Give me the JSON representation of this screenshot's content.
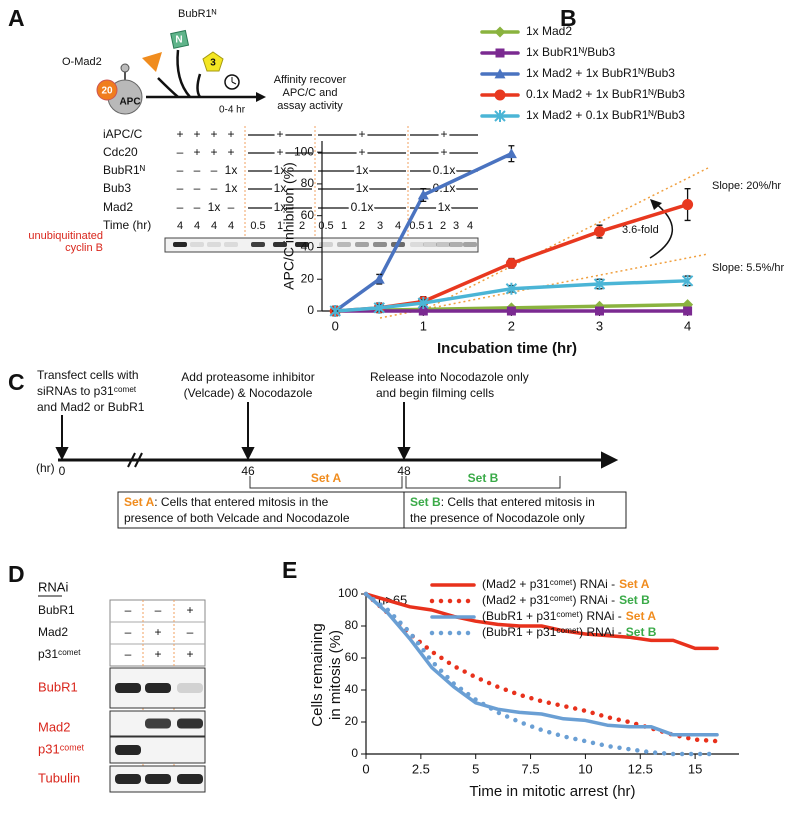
{
  "panel_a": {
    "label": "A",
    "schematic": {
      "mad2": "O-Mad2",
      "bubr1": "BubR1ᴺ",
      "n": "N",
      "bub3": "3",
      "cdc20": "20",
      "apc": "APC",
      "time": "0-4 hr",
      "action": [
        "Affinity recover",
        "APC/C and",
        "assay activity"
      ]
    },
    "table": {
      "rows": [
        {
          "label": "iAPC/C",
          "cells": [
            "+",
            "+",
            "+",
            "+",
            "+",
            "+",
            "+"
          ]
        },
        {
          "label": "Cdc20",
          "cells": [
            "–",
            "+",
            "+",
            "+",
            "+",
            "+",
            "+"
          ]
        },
        {
          "label": "BubR1ᴺ",
          "cells": [
            "–",
            "–",
            "–",
            "1x",
            "1x",
            "1x",
            "0.1x"
          ]
        },
        {
          "label": "Bub3",
          "cells": [
            "–",
            "–",
            "–",
            "1x",
            "1x",
            "1x",
            "0.1x"
          ]
        },
        {
          "label": "Mad2",
          "cells": [
            "–",
            "–",
            "1x",
            "–",
            "1x",
            "0.1x",
            "1x"
          ]
        }
      ],
      "time_label": "Time (hr)",
      "time": [
        [
          "4",
          "4",
          "4",
          "4"
        ],
        [
          "0.5",
          "1",
          "2"
        ],
        [
          "0.5",
          "1",
          "2",
          "3",
          "4"
        ],
        [
          "0.5",
          "1",
          "2",
          "3",
          "4"
        ]
      ]
    },
    "gel_label": [
      "unubiquitinated",
      "cyclin B"
    ]
  },
  "panel_c": {
    "label": "C",
    "step1": [
      "Transfect cells with",
      "siRNAs to p31ᶜᵒᵐᵉᵗ",
      "and Mad2 or BubR1"
    ],
    "step2": [
      "Add proteasome inhibitor",
      "(Velcade) & Nocodazole"
    ],
    "step3": [
      "Release into Nocodazole only",
      "and begin filming cells"
    ],
    "unit": "(hr)",
    "times": [
      "0",
      "46",
      "48"
    ],
    "set_a": "Set A",
    "set_b": "Set B",
    "set_a_color": "#f08c1e",
    "set_b_color": "#3aaa48",
    "box_a": [
      ": Cells that entered mitosis in the",
      "presence of  both Velcade and Nocodazole"
    ],
    "box_b": [
      ": Cells that entered mitosis in",
      "the presence of Nocodazole only"
    ]
  },
  "panel_d": {
    "label": "D",
    "rnai": "RNAi",
    "rows": [
      {
        "label": "BubR1",
        "cells": [
          "–",
          "–",
          "+"
        ]
      },
      {
        "label": "Mad2",
        "cells": [
          "–",
          "+",
          "–"
        ]
      },
      {
        "label": "p31ᶜᵒᵐᵉᵗ",
        "cells": [
          "–",
          "+",
          "+"
        ]
      }
    ],
    "blots": [
      "BubR1",
      "Mad2",
      "p31ᶜᵒᵐᵉᵗ",
      "Tubulin"
    ]
  },
  "chart_data": [
    {
      "type": "line",
      "panel_label": "B",
      "xlabel": "Incubation time (hr)",
      "ylabel": "APC/C inhibition (%)",
      "xlim": [
        -0.15,
        4.05
      ],
      "ylim": [
        0,
        107
      ],
      "xticks": [
        0,
        1,
        2,
        3,
        4
      ],
      "yticks": [
        0,
        20,
        40,
        60,
        80,
        100
      ],
      "annotations": [
        "Slope: 20%/hr",
        "3.6-fold",
        "Slope: 5.5%/hr"
      ],
      "series": [
        {
          "name": "1x Mad2",
          "color": "#8ab33f",
          "marker": "diamond",
          "x": [
            0,
            1,
            2,
            3,
            4
          ],
          "values": [
            0,
            1,
            2,
            3,
            4
          ]
        },
        {
          "name": "1x BubR1ᴺ/Bub3",
          "color": "#7b2a91",
          "marker": "square",
          "x": [
            0,
            1,
            2,
            3,
            4
          ],
          "values": [
            0,
            0,
            0,
            0,
            0
          ]
        },
        {
          "name": "1x Mad2 + 1x BubR1ᴺ/Bub3",
          "color": "#4a73c0",
          "marker": "triangle",
          "x": [
            0,
            0.5,
            1,
            2
          ],
          "values": [
            0,
            20,
            73,
            99
          ],
          "errors": [
            0,
            3,
            4,
            5
          ]
        },
        {
          "name": "0.1x Mad2 + 1x BubR1ᴺ/Bub3",
          "color": "#e8381f",
          "marker": "circle",
          "x": [
            0,
            0.5,
            1,
            2,
            3,
            4
          ],
          "values": [
            0,
            2,
            6,
            30,
            50,
            67
          ],
          "errors": [
            3,
            3,
            3,
            3,
            4,
            10
          ]
        },
        {
          "name": "1x Mad2 + 0.1x BubR1ᴺ/Bub3",
          "color": "#4bb5d6",
          "marker": "star",
          "x": [
            0,
            0.5,
            1,
            2,
            3,
            4
          ],
          "values": [
            0,
            2,
            5,
            14,
            17,
            19
          ],
          "errors": [
            0,
            2,
            2,
            2,
            3,
            3
          ]
        }
      ]
    },
    {
      "type": "line",
      "panel_label": "E",
      "xlabel": "Time in mitotic arrest (hr)",
      "ylabel": [
        "Cells remaining",
        "in mitosis (%)"
      ],
      "annotation": "n>65",
      "xlim": [
        0,
        17
      ],
      "ylim": [
        0,
        100
      ],
      "xticks": [
        0,
        2.5,
        5,
        7.5,
        10,
        12.5,
        15
      ],
      "yticks": [
        0,
        20,
        40,
        60,
        80,
        100
      ],
      "x": [
        0,
        1,
        2,
        3,
        4,
        5,
        6,
        7,
        8,
        9,
        10,
        11,
        12,
        13,
        14,
        15,
        16
      ],
      "series": [
        {
          "name": "(Mad2 + p31ᶜᵒᵐᵉᵗ) RNAi -",
          "set": "Set A",
          "set_color": "#f08c1e",
          "color": "#e8311c",
          "dash": "solid",
          "values": [
            100,
            96,
            92,
            90,
            86,
            83,
            81,
            80,
            80,
            77,
            75,
            74,
            73,
            71,
            71,
            66,
            66
          ]
        },
        {
          "name": "(Mad2 + p31ᶜᵒᵐᵉᵗ) RNAi -",
          "set": "Set B",
          "set_color": "#3aaa48",
          "color": "#e8311c",
          "dash": "dotted",
          "values": [
            100,
            88,
            75,
            64,
            55,
            48,
            42,
            37,
            33,
            30,
            27,
            23,
            20,
            16,
            12,
            9,
            8
          ]
        },
        {
          "name": "(BubR1 + p31ᶜᵒᵐᵉᵗ) RNAi -",
          "set": "Set A",
          "set_color": "#f08c1e",
          "color": "#6a9fd4",
          "dash": "solid",
          "values": [
            100,
            88,
            72,
            54,
            42,
            32,
            28,
            26,
            25,
            22,
            21,
            18,
            17,
            17,
            12,
            12,
            12
          ]
        },
        {
          "name": "(BubR1 + p31ᶜᵒᵐᵉᵗ) RNAi -",
          "set": "Set B",
          "set_color": "#3aaa48",
          "color": "#6a9fd4",
          "dash": "dotted",
          "values": [
            100,
            90,
            76,
            58,
            44,
            34,
            26,
            20,
            15,
            11,
            8,
            5,
            3,
            1,
            0,
            0,
            0
          ]
        }
      ]
    }
  ]
}
